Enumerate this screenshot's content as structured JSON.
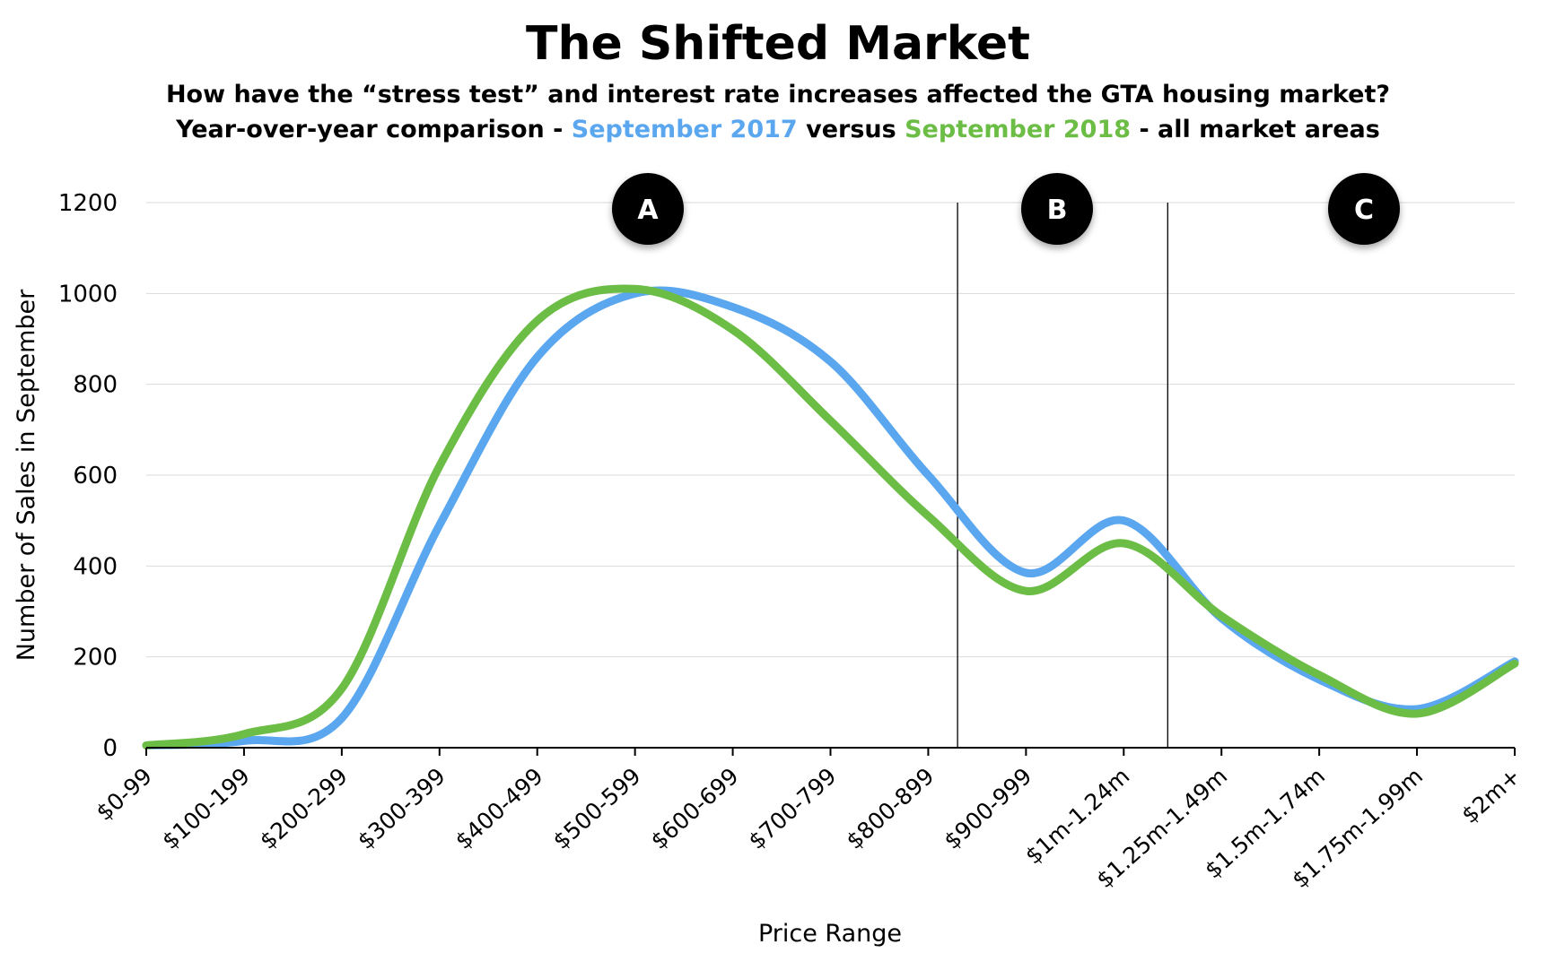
{
  "chart_data": {
    "type": "line",
    "title": "The Shifted Market",
    "subtitle_line1": "How have the “stress test” and interest rate increases affected the GTA housing market?",
    "subtitle_line2": {
      "prefix": "Year-over-year comparison - ",
      "series1": "September 2017",
      "middle": " versus ",
      "series2": "September 2018",
      "suffix": " - all market areas"
    },
    "xlabel": "Price Range",
    "ylabel": "Number of Sales in September",
    "ylim": [
      0,
      1200
    ],
    "yticks": [
      0,
      200,
      400,
      600,
      800,
      1000,
      1200
    ],
    "grid": true,
    "categories": [
      "$0-99",
      "$100-199",
      "$200-299",
      "$300-399",
      "$400-499",
      "$500-599",
      "$600-699",
      "$700-799",
      "$800-899",
      "$900-999",
      "$1m-1.24m",
      "$1.25m-1.49m",
      "$1.5m-1.74m",
      "$1.75m-1.99m",
      "$2m+"
    ],
    "series": [
      {
        "name": "September 2017",
        "color": "#5aa7f0",
        "values": [
          5,
          15,
          65,
          490,
          860,
          1000,
          970,
          850,
          600,
          385,
          500,
          285,
          150,
          85,
          190
        ]
      },
      {
        "name": "September 2018",
        "color": "#6cbd45",
        "values": [
          5,
          30,
          130,
          620,
          940,
          1010,
          920,
          720,
          510,
          345,
          450,
          290,
          160,
          75,
          185
        ]
      }
    ],
    "regions": [
      {
        "label": "A",
        "start_category": 0,
        "end_category": 8.3
      },
      {
        "label": "B",
        "start_category": 8.3,
        "end_category": 10.45
      },
      {
        "label": "C",
        "start_category": 10.45,
        "end_category": 14
      }
    ],
    "divider_positions": [
      8.3,
      10.45
    ]
  }
}
